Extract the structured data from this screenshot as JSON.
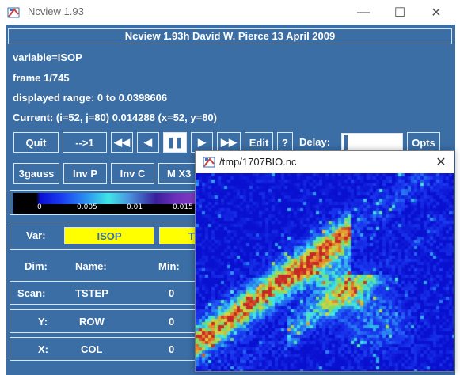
{
  "window": {
    "title": "Ncview 1.93",
    "controls": {
      "minimize": "—",
      "maximize": "☐",
      "close": "✕"
    }
  },
  "banner": "Ncview 1.93h David W. Pierce  13 April 2009",
  "info": {
    "variable": "variable=ISOP",
    "frame": "frame 1/745",
    "range": "displayed range: 0 to 0.0398606",
    "current": "Current: (i=52, j=80) 0.014288 (x=52, y=80)"
  },
  "toolbar": {
    "quit": "Quit",
    "next": "-->1",
    "rewind": "◀◀",
    "back": "◀",
    "pause": "❚❚",
    "forward": "▶",
    "fast_forward": "▶▶",
    "edit": "Edit",
    "help": "?",
    "delay_label": "Delay:",
    "opts": "Opts"
  },
  "toolbar2": {
    "gauss": "3gauss",
    "inv_p": "Inv P",
    "inv_c": "Inv C",
    "mag": "M X3"
  },
  "colorbar": {
    "ticks": [
      "0",
      "0.005",
      "0.01",
      "0.015"
    ]
  },
  "variable_panel": {
    "label": "Var:",
    "selected": "ISOP",
    "second": "T"
  },
  "dims": {
    "headers": {
      "dim": "Dim:",
      "name": "Name:",
      "min": "Min:"
    },
    "rows": [
      {
        "dim": "Scan:",
        "name": "TSTEP",
        "min": "0"
      },
      {
        "dim": "Y:",
        "name": "ROW",
        "min": "0"
      },
      {
        "dim": "X:",
        "name": "COL",
        "min": "0"
      }
    ]
  },
  "popup": {
    "title": "/tmp/1707BIO.nc",
    "close": "✕"
  },
  "colors": {
    "panel_bg": "#3a6ea5",
    "highlight": "#ffff00",
    "plot_bg": "#0a10d0"
  }
}
